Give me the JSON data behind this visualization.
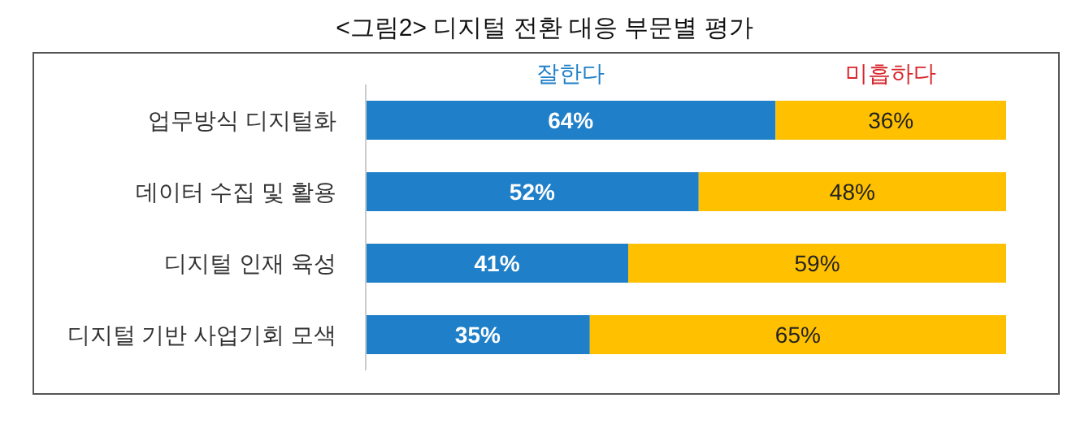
{
  "chart_data": {
    "type": "bar",
    "orientation": "horizontal",
    "stacked": true,
    "title": "<그림2> 디지털 전환 대응 부문별 평가",
    "categories": [
      "업무방식 디지털화",
      "데이터 수집 및 활용",
      "디지털 인재 육성",
      "디지털 기반 사업기회 모색"
    ],
    "series": [
      {
        "name": "잘한다",
        "color": "#1f7fc8",
        "values": [
          64,
          52,
          41,
          35
        ],
        "value_labels": [
          "64%",
          "52%",
          "41%",
          "35%"
        ]
      },
      {
        "name": "미흡하다",
        "color": "#ffc000",
        "values": [
          36,
          48,
          59,
          65
        ],
        "value_labels": [
          "36%",
          "48%",
          "59%",
          "65%"
        ]
      }
    ],
    "legend": "top"
  }
}
